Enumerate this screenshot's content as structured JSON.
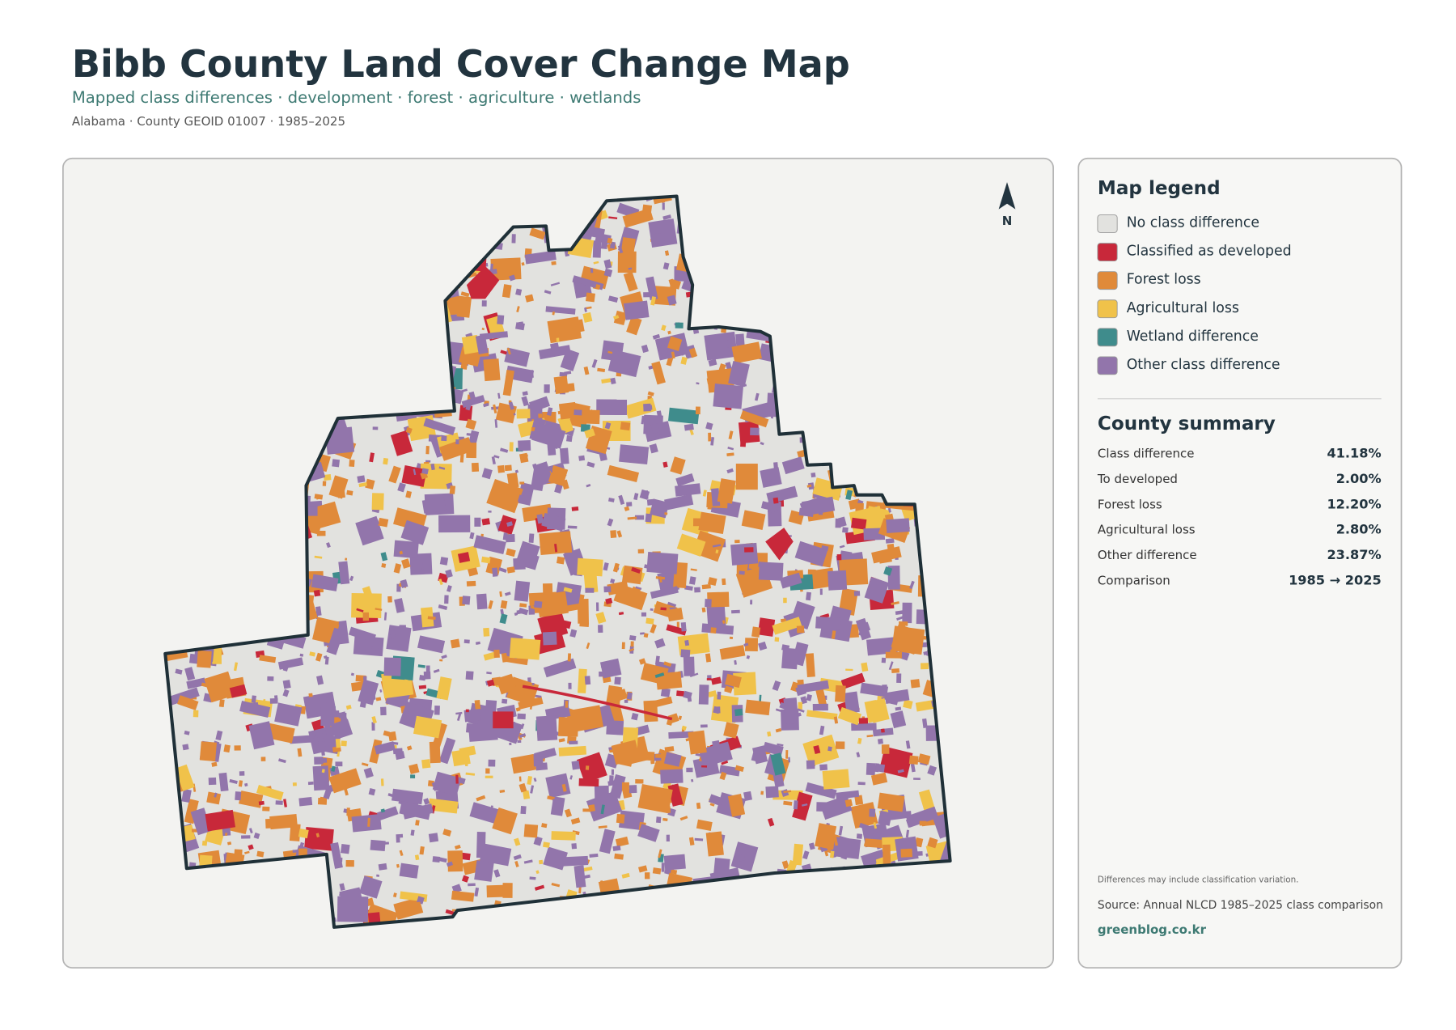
{
  "header": {
    "title": "Bibb County Land Cover Change Map",
    "subtitle": "Mapped class differences · development · forest · agriculture · wetlands",
    "meta": "Alabama · County GEOID 01007 · 1985–2025"
  },
  "map": {
    "north": "N"
  },
  "legend": {
    "title": "Map legend",
    "items": [
      {
        "label": "No class difference",
        "color": "#e2e2df"
      },
      {
        "label": "Classified as developed",
        "color": "#c8283a"
      },
      {
        "label": "Forest loss",
        "color": "#e08a3a"
      },
      {
        "label": "Agricultural loss",
        "color": "#f0c24a"
      },
      {
        "label": "Wetland difference",
        "color": "#3f8c8c"
      },
      {
        "label": "Other class difference",
        "color": "#9275ab"
      }
    ]
  },
  "summary": {
    "title": "County summary",
    "rows": [
      {
        "label": "Class difference",
        "value": "41.18%"
      },
      {
        "label": "To developed",
        "value": "2.00%"
      },
      {
        "label": "Forest loss",
        "value": "12.20%"
      },
      {
        "label": "Agricultural loss",
        "value": "2.80%"
      },
      {
        "label": "Other difference",
        "value": "23.87%"
      },
      {
        "label": "Comparison",
        "value": "1985 → 2025"
      }
    ]
  },
  "notes": {
    "caveat": "Differences may include classification variation.",
    "source": "Source: Annual NLCD 1985–2025 class comparison",
    "site": "greenblog.co.kr"
  }
}
